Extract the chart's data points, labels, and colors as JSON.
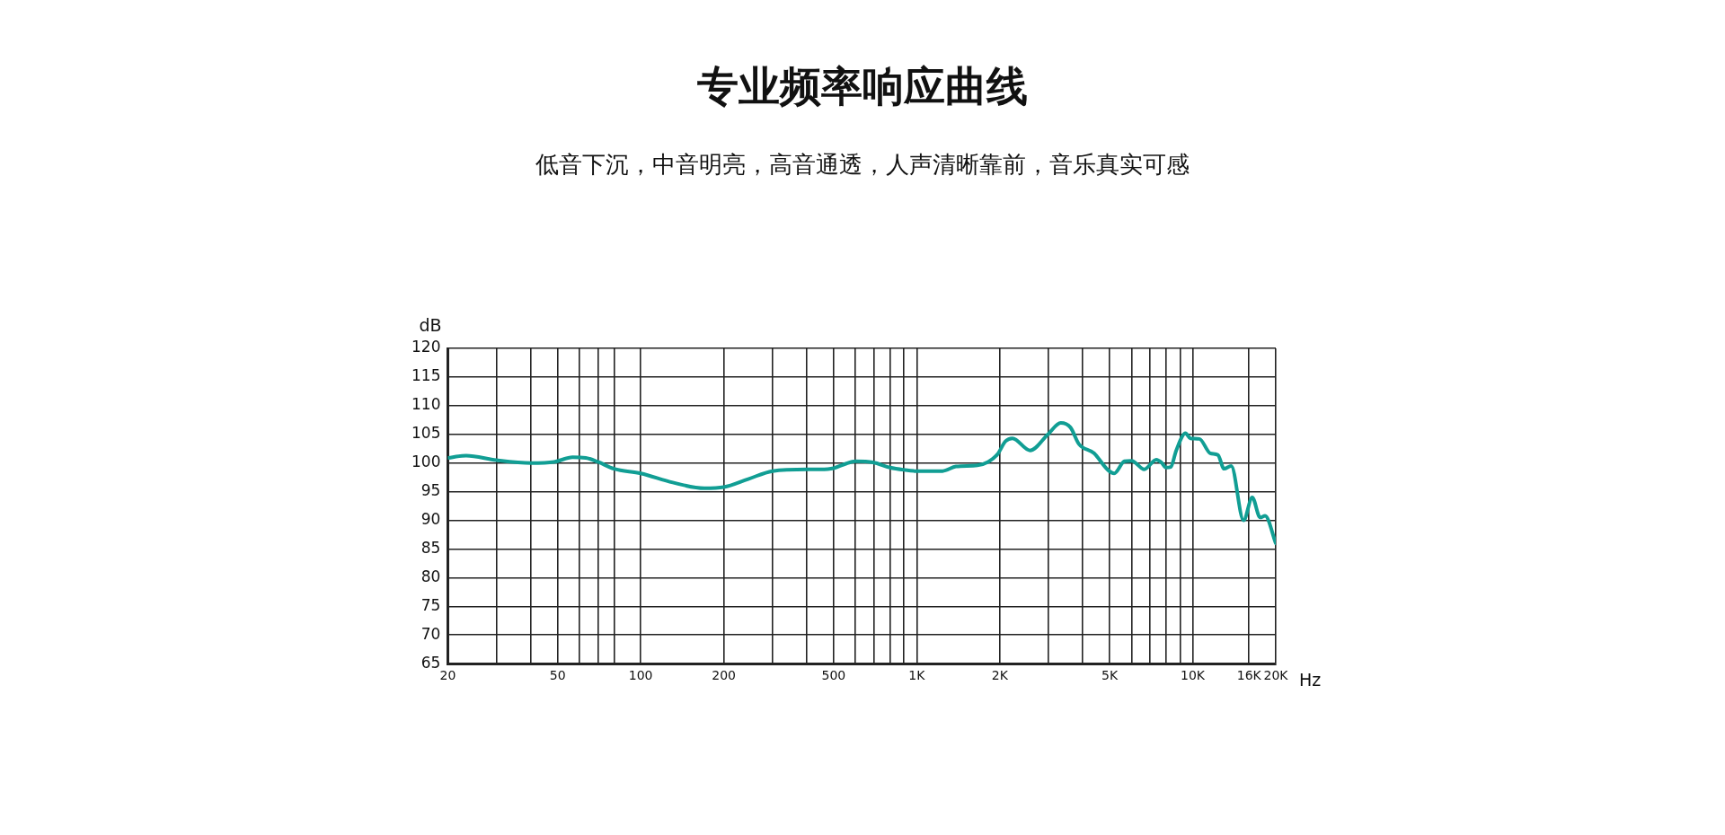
{
  "chart_data": {
    "type": "line",
    "title": "专业频率响应曲线",
    "subtitle": "低音下沉，中音明亮，高音通透，人声清晰靠前，音乐真实可感",
    "xlabel": "Hz",
    "ylabel": "dB",
    "log": "x",
    "x": [
      20,
      23.3,
      30,
      40,
      48.6,
      56.6,
      63.2,
      70,
      80,
      100,
      130.6,
      170,
      200,
      245,
      300,
      400,
      448,
      500,
      548,
      600,
      695,
      800,
      900,
      1000,
      1241,
      1388,
      1659,
      1814,
      1960,
      2098,
      2223,
      2573,
      3000,
      3324,
      3608,
      3871,
      4390,
      4928,
      5196,
      5657,
      6000,
      6678,
      7380,
      7700,
      8000,
      8325,
      8717,
      9420,
      9805,
      10580,
      11576,
      12343,
      12993,
      13790,
      15289,
      16433,
      17556,
      18295,
      20000
    ],
    "series": [
      {
        "color": "#119e94",
        "values": [
          100.9,
          101.3,
          100.5,
          100.0,
          100.2,
          101.0,
          100.9,
          100.2,
          99.0,
          98.2,
          96.6,
          95.6,
          95.8,
          97.2,
          98.6,
          98.9,
          98.9,
          99.1,
          99.8,
          100.3,
          100.1,
          99.2,
          98.8,
          98.6,
          98.6,
          99.4,
          99.6,
          100.2,
          101.5,
          103.8,
          104.3,
          102.2,
          105.1,
          107.0,
          106.2,
          103.3,
          101.7,
          98.8,
          98.2,
          100.3,
          100.4,
          98.9,
          100.6,
          100.1,
          99.2,
          99.3,
          102.2,
          105.2,
          104.3,
          104.2,
          101.7,
          101.4,
          99.0,
          99.5,
          90.0,
          94.0,
          90.5,
          90.8,
          86.0
        ]
      }
    ],
    "xlim": [
      20,
      20000
    ],
    "xticks": [
      20,
      {
        "value": 30,
        "label": null
      },
      {
        "value": 40,
        "label": null
      },
      50,
      {
        "value": 60,
        "label": null
      },
      {
        "value": 70,
        "label": null
      },
      {
        "value": 80,
        "label": null
      },
      100,
      200,
      {
        "value": 300,
        "label": null
      },
      {
        "value": 400,
        "label": null
      },
      500,
      {
        "value": 600,
        "label": null
      },
      {
        "value": 700,
        "label": null
      },
      {
        "value": 800,
        "label": null
      },
      {
        "value": 900,
        "label": null
      },
      {
        "value": 1000,
        "label": "1K"
      },
      {
        "value": 2000,
        "label": "2K"
      },
      {
        "value": 3000,
        "label": null
      },
      {
        "value": 4000,
        "label": null
      },
      {
        "value": 5000,
        "label": "5K"
      },
      {
        "value": 6000,
        "label": null
      },
      {
        "value": 7000,
        "label": null
      },
      {
        "value": 8000,
        "label": null
      },
      {
        "value": 9000,
        "label": null
      },
      {
        "value": 10000,
        "label": "10K"
      },
      {
        "value": 16000,
        "label": "16K"
      },
      {
        "value": 20000,
        "label": "20K"
      }
    ],
    "ylim": [
      65,
      120
    ],
    "yticks": [
      65,
      70,
      75,
      80,
      85,
      90,
      95,
      100,
      105,
      110,
      115,
      120
    ],
    "grid": true,
    "legend": false,
    "marker": "none",
    "line_style": "solid"
  }
}
